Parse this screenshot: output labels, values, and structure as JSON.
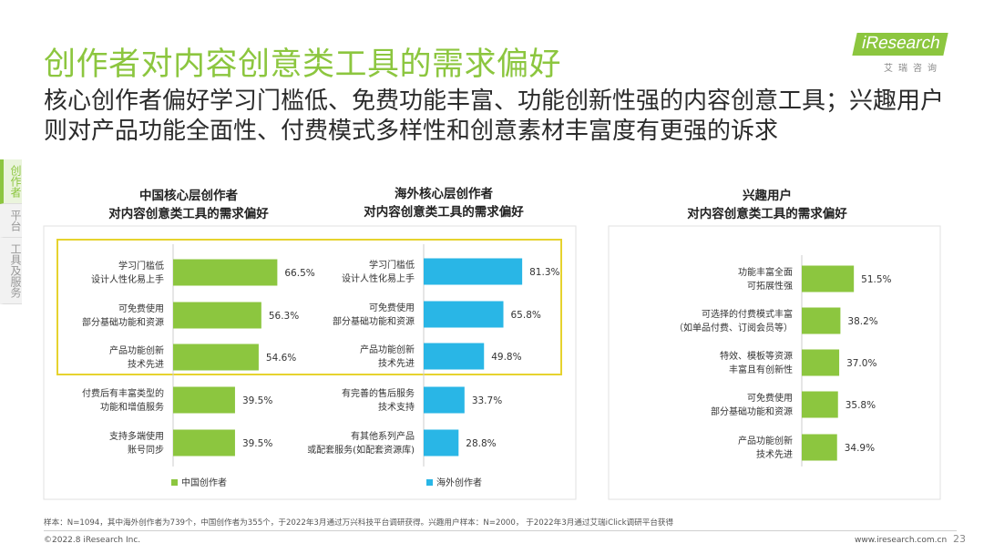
{
  "header": {
    "title": "创作者对内容创意类工具的需求偏好",
    "subtitle": "核心创作者偏好学习门槛低、免费功能丰富、功能创新性强的内容创意工具；兴趣用户则对产品功能全面性、付费模式多样性和创意素材丰富度有更强的诉求"
  },
  "logo": {
    "word": "iResearch",
    "sub": "艾瑞咨询"
  },
  "side_tabs": [
    {
      "label": "创作者"
    },
    {
      "label": "平台"
    },
    {
      "label": "工具及服务"
    }
  ],
  "colors": {
    "accent": "#8cc63f",
    "overseas": "#29b6e6",
    "highlight": "#e6d32e"
  },
  "chart_data": [
    {
      "type": "bar",
      "orientation": "horizontal",
      "title": [
        "中国核心层创作者",
        "对内容创意类工具的需求偏好"
      ],
      "legend": "中国创作者",
      "color": "#8cc63f",
      "categories": [
        [
          "学习门槛低",
          "设计人性化易上手"
        ],
        [
          "可免费使用",
          "部分基础功能和资源"
        ],
        [
          "产品功能创新",
          "技术先进"
        ],
        [
          "付费后有丰富类型的",
          "功能和增值服务"
        ],
        [
          "支持多端使用",
          "账号同步"
        ]
      ],
      "values": [
        66.5,
        56.3,
        54.6,
        39.5,
        39.5
      ],
      "value_labels": [
        "66.5%",
        "56.3%",
        "54.6%",
        "39.5%",
        "39.5%"
      ]
    },
    {
      "type": "bar",
      "orientation": "horizontal",
      "title": [
        "海外核心层创作者",
        "对内容创意类工具的需求偏好"
      ],
      "legend": "海外创作者",
      "color": "#29b6e6",
      "categories": [
        [
          "学习门槛低",
          "设计人性化易上手"
        ],
        [
          "可免费使用",
          "部分基础功能和资源"
        ],
        [
          "产品功能创新",
          "技术先进"
        ],
        [
          "有完善的售后服务",
          "技术支持"
        ],
        [
          "有其他系列产品",
          "或配套服务(如配套资源库)"
        ]
      ],
      "values": [
        81.3,
        65.8,
        49.8,
        33.7,
        28.8
      ],
      "value_labels": [
        "81.3%",
        "65.8%",
        "49.8%",
        "33.7%",
        "28.8%"
      ]
    },
    {
      "type": "bar",
      "orientation": "horizontal",
      "title": [
        "兴趣用户",
        "对内容创意类工具的需求偏好"
      ],
      "color": "#8cc63f",
      "categories": [
        [
          "功能丰富全面",
          "可拓展性强"
        ],
        [
          "可选择的付费模式丰富",
          "（如单品付费、订阅会员等）"
        ],
        [
          "特效、模板等资源",
          "丰富且有创新性"
        ],
        [
          "可免费使用",
          "部分基础功能和资源"
        ],
        [
          "产品功能创新",
          "技术先进"
        ]
      ],
      "values": [
        51.5,
        38.2,
        37.0,
        35.8,
        34.9
      ],
      "value_labels": [
        "51.5%",
        "38.2%",
        "37.0%",
        "35.8%",
        "34.9%"
      ]
    }
  ],
  "footnote": "样本：N=1094，其中海外创作者为739个，中国创作者为355个，于2022年3月通过万兴科技平台调研获得。兴趣用户样本：N=2000， 于2022年3月通过艾瑞iClick调研平台获得",
  "footer": {
    "copyright": "©2022.8 iResearch Inc.",
    "website": "www.iresearch.com.cn",
    "page": "23"
  }
}
